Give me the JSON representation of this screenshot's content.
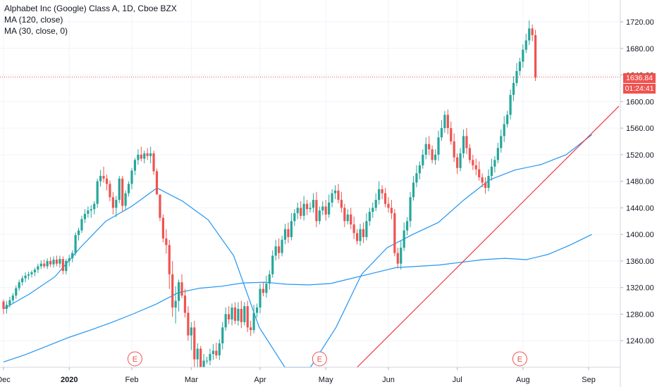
{
  "legend": {
    "title": "Alphabet Inc (Google) Class A, 1D, Cboe BZX",
    "ma1": "MA (120, close)",
    "ma2": "MA (30, close, 0)"
  },
  "price_badge": "1636.84",
  "time_badge": "01:24:41",
  "event_marker": "E",
  "colors": {
    "up": "#26a69a",
    "down": "#ef5350",
    "ma": "#2196f3",
    "trendline": "#f23645",
    "grid": "#f0f3fa",
    "axis_text": "#131722"
  },
  "chart_data": {
    "type": "candlestick",
    "title": "Alphabet Inc (Google) Class A, 1D, Cboe BZX",
    "xlabel": "",
    "ylabel": "",
    "ylim": [
      1200,
      1745
    ],
    "y_ticks": [
      1240,
      1280,
      1320,
      1360,
      1400,
      1440,
      1480,
      1520,
      1560,
      1600,
      1640,
      1680,
      1720
    ],
    "y_tick_labels": [
      "1240.00",
      "1280.00",
      "1320.00",
      "1360.00",
      "1400.00",
      "1440.00",
      "1480.00",
      "1520.00",
      "1560.00",
      "1600.00",
      "1640.00",
      "1680.00",
      "1720.00"
    ],
    "x_ticks": [
      {
        "label": "Dec",
        "index": 0
      },
      {
        "label": "2020",
        "index": 21
      },
      {
        "label": "Feb",
        "index": 41
      },
      {
        "label": "Mar",
        "index": 60
      },
      {
        "label": "Apr",
        "index": 82
      },
      {
        "label": "May",
        "index": 103
      },
      {
        "label": "Jun",
        "index": 123
      },
      {
        "label": "Jul",
        "index": 145
      },
      {
        "label": "Aug",
        "index": 166
      },
      {
        "label": "Sep",
        "index": 187
      }
    ],
    "earnings_markers": [
      42,
      101,
      165
    ],
    "last_price": 1636.84,
    "candles": [
      [
        1299,
        1302,
        1280,
        1288
      ],
      [
        1288,
        1300,
        1281,
        1294
      ],
      [
        1294,
        1306,
        1290,
        1301
      ],
      [
        1301,
        1312,
        1297,
        1308
      ],
      [
        1308,
        1323,
        1303,
        1319
      ],
      [
        1319,
        1332,
        1315,
        1328
      ],
      [
        1328,
        1338,
        1323,
        1334
      ],
      [
        1334,
        1343,
        1328,
        1338
      ],
      [
        1338,
        1344,
        1332,
        1340
      ],
      [
        1340,
        1346,
        1335,
        1343
      ],
      [
        1343,
        1350,
        1337,
        1347
      ],
      [
        1347,
        1356,
        1342,
        1352
      ],
      [
        1352,
        1361,
        1348,
        1356
      ],
      [
        1356,
        1362,
        1349,
        1352
      ],
      [
        1352,
        1364,
        1348,
        1360
      ],
      [
        1360,
        1366,
        1351,
        1355
      ],
      [
        1355,
        1367,
        1350,
        1362
      ],
      [
        1362,
        1368,
        1352,
        1356
      ],
      [
        1356,
        1368,
        1350,
        1363
      ],
      [
        1363,
        1367,
        1340,
        1345
      ],
      [
        1345,
        1363,
        1340,
        1360
      ],
      [
        1360,
        1369,
        1352,
        1364
      ],
      [
        1364,
        1376,
        1358,
        1372
      ],
      [
        1372,
        1403,
        1368,
        1399
      ],
      [
        1399,
        1410,
        1391,
        1406
      ],
      [
        1406,
        1428,
        1402,
        1423
      ],
      [
        1423,
        1438,
        1417,
        1431
      ],
      [
        1431,
        1442,
        1425,
        1436
      ],
      [
        1436,
        1444,
        1425,
        1438
      ],
      [
        1438,
        1450,
        1430,
        1446
      ],
      [
        1446,
        1484,
        1440,
        1480
      ],
      [
        1480,
        1497,
        1472,
        1488
      ],
      [
        1488,
        1502,
        1478,
        1484
      ],
      [
        1484,
        1490,
        1466,
        1476
      ],
      [
        1476,
        1481,
        1450,
        1456
      ],
      [
        1456,
        1464,
        1430,
        1440
      ],
      [
        1440,
        1458,
        1426,
        1452
      ],
      [
        1452,
        1488,
        1447,
        1484
      ],
      [
        1484,
        1488,
        1434,
        1443
      ],
      [
        1443,
        1466,
        1436,
        1462
      ],
      [
        1462,
        1480,
        1457,
        1476
      ],
      [
        1476,
        1500,
        1468,
        1496
      ],
      [
        1496,
        1515,
        1489,
        1512
      ],
      [
        1512,
        1528,
        1505,
        1520
      ],
      [
        1520,
        1532,
        1510,
        1514
      ],
      [
        1514,
        1526,
        1507,
        1522
      ],
      [
        1522,
        1530,
        1512,
        1518
      ],
      [
        1518,
        1532,
        1507,
        1522
      ],
      [
        1522,
        1526,
        1490,
        1495
      ],
      [
        1495,
        1499,
        1465,
        1460
      ],
      [
        1460,
        1460,
        1420,
        1425
      ],
      [
        1425,
        1430,
        1388,
        1394
      ],
      [
        1394,
        1408,
        1371,
        1384
      ],
      [
        1384,
        1392,
        1318,
        1340
      ],
      [
        1340,
        1360,
        1276,
        1290
      ],
      [
        1290,
        1322,
        1266,
        1300
      ],
      [
        1300,
        1332,
        1284,
        1328
      ],
      [
        1328,
        1340,
        1304,
        1308
      ],
      [
        1308,
        1318,
        1275,
        1282
      ],
      [
        1282,
        1292,
        1240,
        1248
      ],
      [
        1248,
        1268,
        1226,
        1260
      ],
      [
        1260,
        1270,
        1200,
        1212
      ],
      [
        1212,
        1236,
        1200,
        1228
      ],
      [
        1228,
        1232,
        1200,
        1200
      ],
      [
        1200,
        1220,
        1200,
        1210
      ]
    ],
    "ma_series": [
      {
        "name": "MA (120, close)",
        "values": [
          1208,
          1219,
          1232,
          1245,
          1256,
          1268,
          1281,
          1295,
          1312,
          1319,
          1322,
          1327,
          1328,
          1325,
          1324,
          1326,
          1334,
          1342,
          1350,
          1352,
          1354,
          1358,
          1362,
          1364,
          1362,
          1370,
          1384,
          1400
        ]
      },
      {
        "name": "MA (30, close, 0)",
        "values": [
          1288,
          1310,
          1336,
          1380,
          1420,
          1442,
          1470,
          1450,
          1422,
          1368,
          1260,
          1200,
          1200,
          1260,
          1340,
          1380,
          1400,
          1418,
          1452,
          1482,
          1497,
          1505,
          1520,
          1550
        ]
      }
    ],
    "trendline": {
      "from": [
        1200,
        1200
      ],
      "to": [
        1593,
        1593
      ]
    }
  }
}
